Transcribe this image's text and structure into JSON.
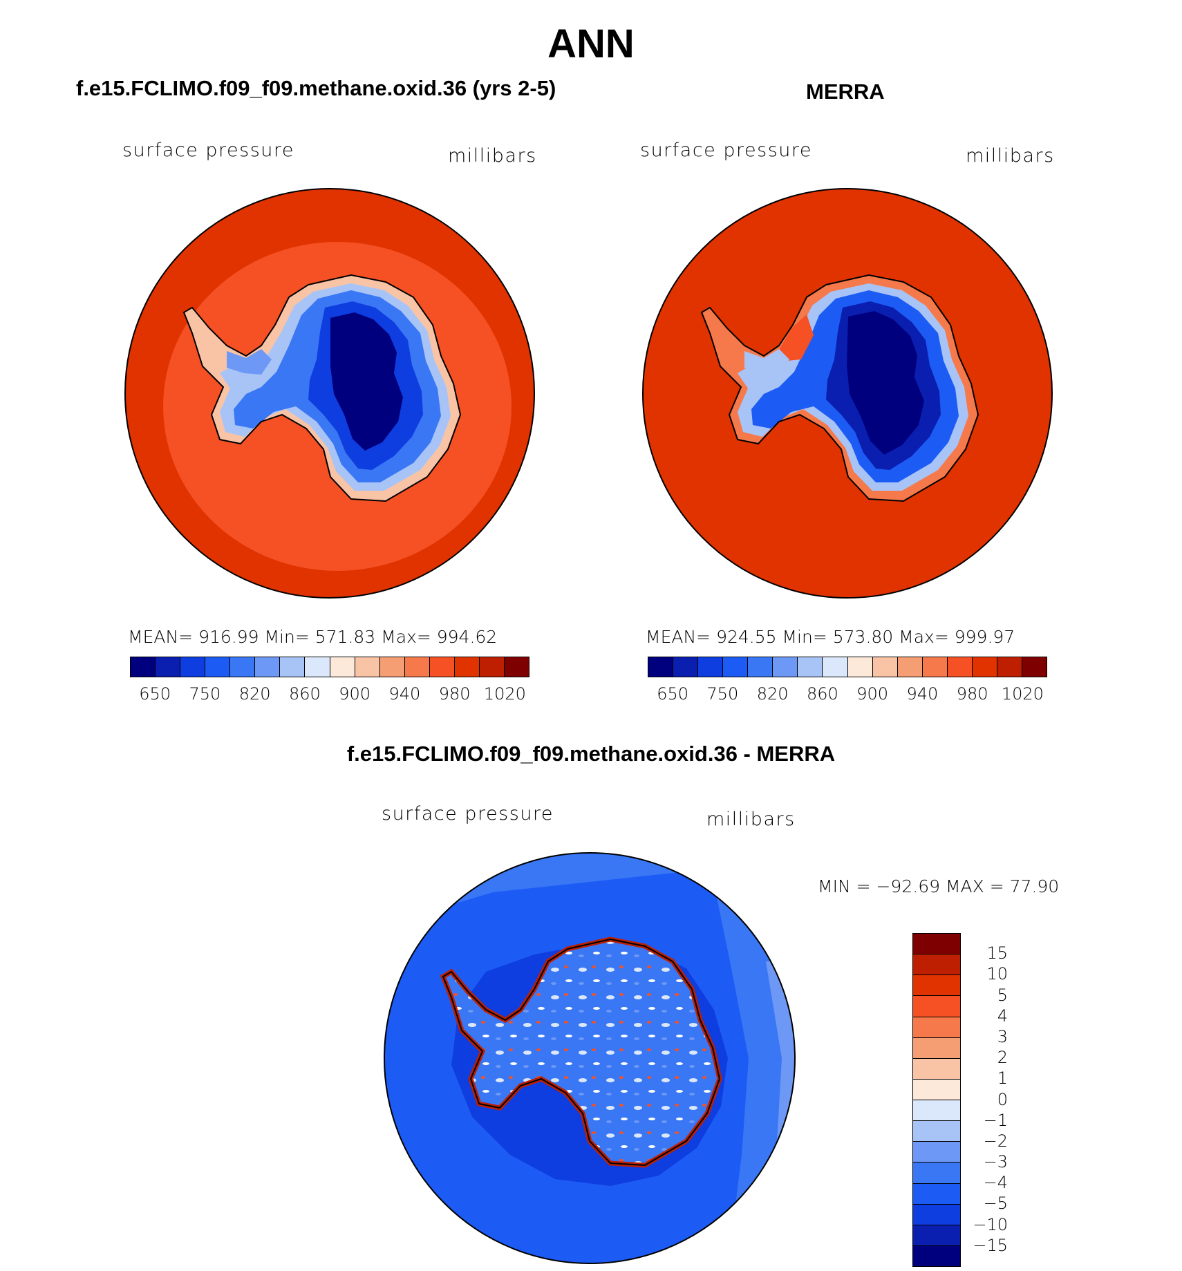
{
  "figure": {
    "title": "ANN",
    "panels": {
      "model": {
        "title": "f.e15.FCLIMO.f09_f09.methane.oxid.36 (yrs 2-5)",
        "var_label": "surface pressure",
        "units": "millibars",
        "stats": "MEAN= 916.99   Min= 571.83   Max= 994.62"
      },
      "obs": {
        "title": "MERRA",
        "var_label": "surface pressure",
        "units": "millibars",
        "stats": "MEAN= 924.55   Min= 573.80   Max= 999.97"
      },
      "diff": {
        "title": "f.e15.FCLIMO.f09_f09.methane.oxid.36 - MERRA",
        "var_label": "surface pressure",
        "units": "millibars",
        "stats": "MIN =  −92.69  MAX =    77.90"
      }
    },
    "colorbar_main": {
      "colors": [
        "#00007f",
        "#0a1fb0",
        "#0f3ee0",
        "#1c5cf5",
        "#3a77f5",
        "#6e98f5",
        "#a8c4f7",
        "#dbe8fb",
        "#fde9da",
        "#f9c4a6",
        "#f59e73",
        "#f5794a",
        "#f55124",
        "#e03300",
        "#bd1f00",
        "#7f0000"
      ],
      "labels": [
        "650",
        "750",
        "820",
        "860",
        "900",
        "940",
        "980",
        "1020"
      ]
    },
    "colorbar_diff": {
      "colors_top_to_bottom": [
        "#7f0000",
        "#bd1f00",
        "#e03300",
        "#f55124",
        "#f5794a",
        "#f59e73",
        "#f9c4a6",
        "#fde9da",
        "#dbe8fb",
        "#a8c4f7",
        "#6e98f5",
        "#3a77f5",
        "#1c5cf5",
        "#0f3ee0",
        "#0a1fb0",
        "#00007f"
      ],
      "labels_top_to_bottom": [
        "15",
        "10",
        "5",
        "4",
        "3",
        "2",
        "1",
        "0",
        "−1",
        "−2",
        "−3",
        "−4",
        "−5",
        "−10",
        "−15"
      ]
    }
  }
}
